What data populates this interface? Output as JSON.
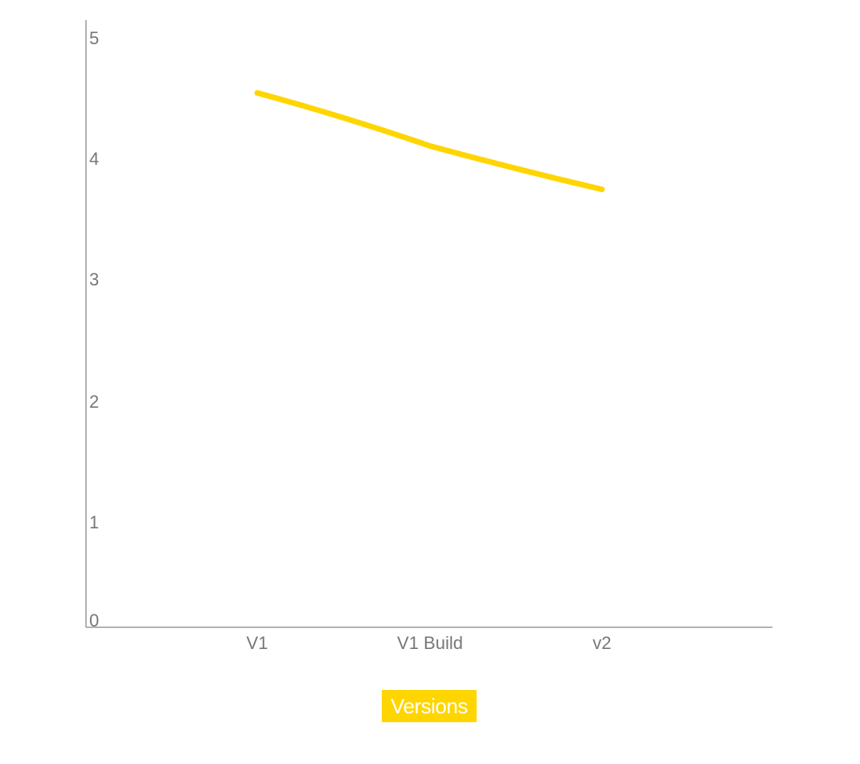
{
  "chart_data": {
    "type": "line",
    "categories": [
      "V1",
      "V1 Build",
      "v2"
    ],
    "series": [
      {
        "name": "Versions",
        "values": [
          4.43,
          3.99,
          3.63
        ],
        "color": "#FFD500"
      }
    ],
    "ylim": [
      0,
      5
    ],
    "yticks": [
      "0",
      "1",
      "2",
      "3",
      "4",
      "5"
    ],
    "grid": false,
    "legend_position": "bottom-center",
    "axis_color": "#999999",
    "tick_color": "#777777"
  }
}
